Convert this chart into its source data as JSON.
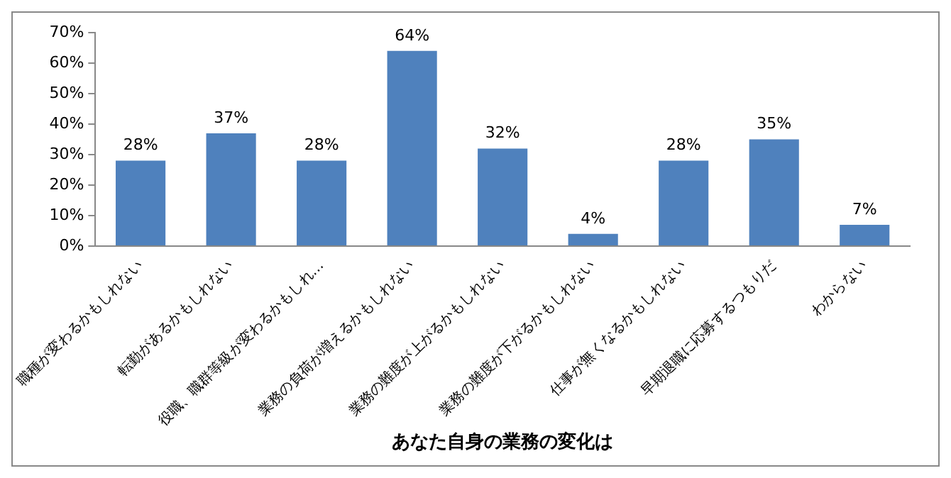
{
  "chart_data": {
    "type": "bar",
    "xlabel": "あなた自身の業務の変化は",
    "categories": [
      "職種が変わるかもしれない",
      "転勤があるかもしれない",
      "役職、職群等級が変わるかもしれ…",
      "業務の負荷が増えるかもしれない",
      "業務の難度が上がるかもしれない",
      "業務の難度が下がるかもしれない",
      "仕事が無くなるかもしれない",
      "早期退職に応募するつもりだ",
      "わからない"
    ],
    "values": [
      28,
      37,
      28,
      64,
      32,
      4,
      28,
      35,
      7
    ],
    "value_labels": [
      "28%",
      "37%",
      "28%",
      "64%",
      "32%",
      "4%",
      "28%",
      "35%",
      "7%"
    ],
    "color": "#4f81bd",
    "ylim": [
      0,
      70
    ],
    "yticks": [
      {
        "value": 0,
        "label": "0%"
      },
      {
        "value": 10,
        "label": "10%"
      },
      {
        "value": 20,
        "label": "20%"
      },
      {
        "value": 30,
        "label": "30%"
      },
      {
        "value": 40,
        "label": "40%"
      },
      {
        "value": 50,
        "label": "50%"
      },
      {
        "value": 60,
        "label": "60%"
      },
      {
        "value": 70,
        "label": "70%"
      }
    ],
    "grid": false,
    "legend": false
  }
}
